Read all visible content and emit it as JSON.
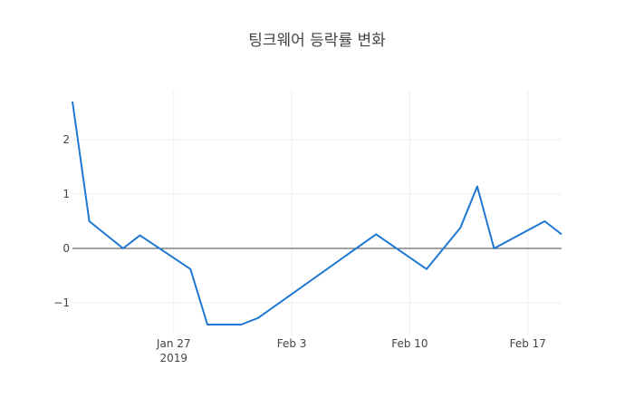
{
  "chart_data": {
    "type": "line",
    "title": "팅크웨어 등락률 변화",
    "xlabel": "",
    "ylabel": "",
    "x_type": "date",
    "xlim": [
      "2019-01-21",
      "2019-02-19"
    ],
    "ylim": [
      -1.6,
      2.9
    ],
    "x_ticks": [
      {
        "date": "2019-01-27",
        "label": "Jan 27",
        "sublabel": "2019"
      },
      {
        "date": "2019-02-03",
        "label": "Feb 3",
        "sublabel": ""
      },
      {
        "date": "2019-02-10",
        "label": "Feb 10",
        "sublabel": ""
      },
      {
        "date": "2019-02-17",
        "label": "Feb 17",
        "sublabel": ""
      }
    ],
    "y_ticks": [
      {
        "value": 2,
        "label": "2"
      },
      {
        "value": 1,
        "label": "1"
      },
      {
        "value": 0,
        "label": "0"
      },
      {
        "value": -1,
        "label": "−1"
      }
    ],
    "grid": true,
    "zero_line": true,
    "colors": {
      "line": "#1f77d4",
      "grid": "#eeeeee",
      "zero_line": "#444444",
      "text": "#444444"
    },
    "series": [
      {
        "points": [
          {
            "x": "2019-01-21",
            "y": 2.7
          },
          {
            "x": "2019-01-22",
            "y": 0.5
          },
          {
            "x": "2019-01-24",
            "y": 0.0
          },
          {
            "x": "2019-01-25",
            "y": 0.24
          },
          {
            "x": "2019-01-28",
            "y": -0.38
          },
          {
            "x": "2019-01-29",
            "y": -1.4
          },
          {
            "x": "2019-01-31",
            "y": -1.4
          },
          {
            "x": "2019-02-01",
            "y": -1.28
          },
          {
            "x": "2019-02-08",
            "y": 0.26
          },
          {
            "x": "2019-02-11",
            "y": -0.38
          },
          {
            "x": "2019-02-13",
            "y": 0.38
          },
          {
            "x": "2019-02-14",
            "y": 1.14
          },
          {
            "x": "2019-02-15",
            "y": 0.0
          },
          {
            "x": "2019-02-18",
            "y": 0.5
          },
          {
            "x": "2019-02-19",
            "y": 0.26
          }
        ]
      }
    ]
  }
}
